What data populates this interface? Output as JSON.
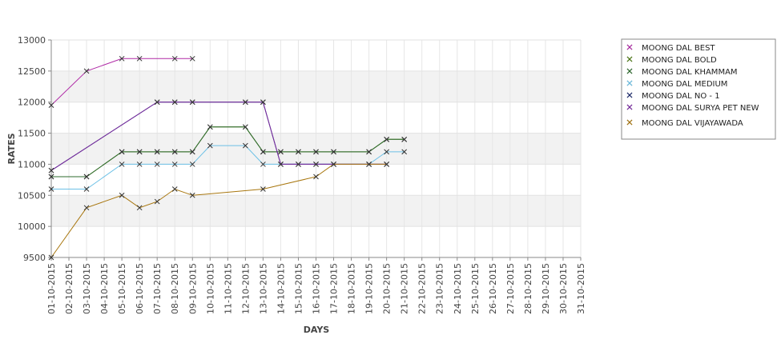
{
  "chart_data": {
    "type": "line",
    "title": "",
    "xlabel": "DAYS",
    "ylabel": "RATES",
    "ylim": [
      9500,
      13000
    ],
    "y_ticks": [
      9500,
      10000,
      10500,
      11000,
      11500,
      12000,
      12500,
      13000
    ],
    "grid": true,
    "legend_position": "right",
    "x": [
      "01-10-2015",
      "02-10-2015",
      "03-10-2015",
      "04-10-2015",
      "05-10-2015",
      "06-10-2015",
      "07-10-2015",
      "08-10-2015",
      "09-10-2015",
      "10-10-2015",
      "11-10-2015",
      "12-10-2015",
      "13-10-2015",
      "14-10-2015",
      "15-10-2015",
      "16-10-2015",
      "17-10-2015",
      "18-10-2015",
      "19-10-2015",
      "20-10-2015",
      "21-10-2015",
      "22-10-2015",
      "23-10-2015",
      "24-10-2015",
      "25-10-2015",
      "26-10-2015",
      "27-10-2015",
      "28-10-2015",
      "29-10-2015",
      "30-10-2015",
      "31-10-2015"
    ],
    "series": [
      {
        "name": "MOONG DAL BEST",
        "color": "#b02aa6",
        "points": [
          [
            "01-10-2015",
            11950
          ],
          [
            "03-10-2015",
            12500
          ],
          [
            "05-10-2015",
            12700
          ],
          [
            "06-10-2015",
            12700
          ],
          [
            "08-10-2015",
            12700
          ],
          [
            "09-10-2015",
            12700
          ]
        ]
      },
      {
        "name": "MOONG DAL BOLD",
        "color": "#4d7a12",
        "points": [
          [
            "01-10-2015",
            10800
          ],
          [
            "03-10-2015",
            10800
          ],
          [
            "05-10-2015",
            11200
          ],
          [
            "06-10-2015",
            11200
          ],
          [
            "07-10-2015",
            11200
          ],
          [
            "08-10-2015",
            11200
          ],
          [
            "09-10-2015",
            11200
          ],
          [
            "10-10-2015",
            11600
          ],
          [
            "12-10-2015",
            11600
          ],
          [
            "13-10-2015",
            11200
          ],
          [
            "14-10-2015",
            11200
          ],
          [
            "15-10-2015",
            11200
          ],
          [
            "16-10-2015",
            11200
          ],
          [
            "17-10-2015",
            11200
          ],
          [
            "19-10-2015",
            11200
          ],
          [
            "20-10-2015",
            11400
          ],
          [
            "21-10-2015",
            11400
          ]
        ]
      },
      {
        "name": "MOONG DAL KHAMMAM",
        "color": "#2e6b2e",
        "points": [
          [
            "01-10-2015",
            10800
          ],
          [
            "03-10-2015",
            10800
          ],
          [
            "05-10-2015",
            11200
          ],
          [
            "06-10-2015",
            11200
          ],
          [
            "07-10-2015",
            11200
          ],
          [
            "08-10-2015",
            11200
          ],
          [
            "09-10-2015",
            11200
          ],
          [
            "10-10-2015",
            11600
          ],
          [
            "12-10-2015",
            11600
          ],
          [
            "13-10-2015",
            11200
          ],
          [
            "14-10-2015",
            11200
          ],
          [
            "15-10-2015",
            11200
          ],
          [
            "16-10-2015",
            11200
          ],
          [
            "17-10-2015",
            11200
          ],
          [
            "19-10-2015",
            11200
          ],
          [
            "20-10-2015",
            11400
          ],
          [
            "21-10-2015",
            11400
          ]
        ]
      },
      {
        "name": "MOONG DAL MEDIUM",
        "color": "#6cc0e6",
        "points": [
          [
            "01-10-2015",
            10600
          ],
          [
            "03-10-2015",
            10600
          ],
          [
            "05-10-2015",
            11000
          ],
          [
            "06-10-2015",
            11000
          ],
          [
            "07-10-2015",
            11000
          ],
          [
            "08-10-2015",
            11000
          ],
          [
            "09-10-2015",
            11000
          ],
          [
            "10-10-2015",
            11300
          ],
          [
            "12-10-2015",
            11300
          ],
          [
            "13-10-2015",
            11000
          ],
          [
            "14-10-2015",
            11000
          ],
          [
            "15-10-2015",
            11000
          ],
          [
            "16-10-2015",
            11000
          ],
          [
            "17-10-2015",
            11000
          ],
          [
            "19-10-2015",
            11000
          ],
          [
            "20-10-2015",
            11200
          ],
          [
            "21-10-2015",
            11200
          ]
        ]
      },
      {
        "name": "MOONG DAL NO - 1",
        "color": "#1c2a6e",
        "points": [
          [
            "01-10-2015",
            10900
          ],
          [
            "07-10-2015",
            12000
          ],
          [
            "08-10-2015",
            12000
          ],
          [
            "09-10-2015",
            12000
          ],
          [
            "12-10-2015",
            12000
          ],
          [
            "13-10-2015",
            12000
          ],
          [
            "14-10-2015",
            11000
          ],
          [
            "15-10-2015",
            11000
          ],
          [
            "16-10-2015",
            11000
          ],
          [
            "17-10-2015",
            11000
          ],
          [
            "19-10-2015",
            11000
          ],
          [
            "20-10-2015",
            11000
          ]
        ]
      },
      {
        "name": "MOONG DAL SURYA PET NEW",
        "color": "#7a2aa0",
        "points": [
          [
            "01-10-2015",
            10900
          ],
          [
            "07-10-2015",
            12000
          ],
          [
            "08-10-2015",
            12000
          ],
          [
            "09-10-2015",
            12000
          ],
          [
            "12-10-2015",
            12000
          ],
          [
            "13-10-2015",
            12000
          ],
          [
            "14-10-2015",
            11000
          ],
          [
            "15-10-2015",
            11000
          ],
          [
            "16-10-2015",
            11000
          ],
          [
            "17-10-2015",
            11000
          ],
          [
            "19-10-2015",
            11000
          ],
          [
            "20-10-2015",
            11000
          ]
        ]
      },
      {
        "name": "MOONG DAL VIJAYAWADA",
        "color": "#a8760e",
        "points": [
          [
            "01-10-2015",
            9500
          ],
          [
            "03-10-2015",
            10300
          ],
          [
            "05-10-2015",
            10500
          ],
          [
            "06-10-2015",
            10300
          ],
          [
            "07-10-2015",
            10400
          ],
          [
            "08-10-2015",
            10600
          ],
          [
            "09-10-2015",
            10500
          ],
          [
            "13-10-2015",
            10600
          ],
          [
            "16-10-2015",
            10800
          ],
          [
            "17-10-2015",
            11000
          ],
          [
            "19-10-2015",
            11000
          ],
          [
            "20-10-2015",
            11000
          ]
        ]
      }
    ]
  }
}
